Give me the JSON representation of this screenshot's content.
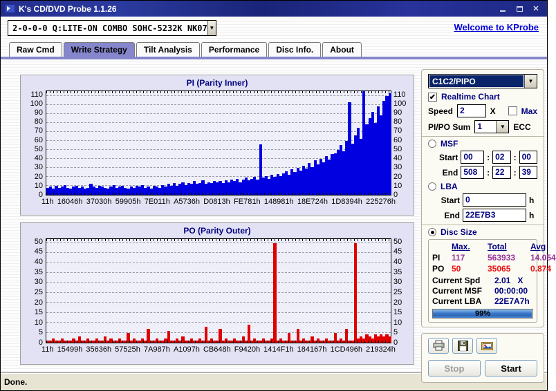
{
  "window": {
    "title": "K's CD/DVD Probe 1.1.26"
  },
  "toolbar": {
    "drive_selector": "2-0-0-0 Q:LITE-ON COMBO SOHC-5232K NK07",
    "welcome_link": "Welcome to KProbe"
  },
  "tabs": {
    "items": [
      "Raw Cmd",
      "Write Strategy",
      "Tilt Analysis",
      "Performance",
      "Disc Info.",
      "About"
    ],
    "active": "Write Strategy"
  },
  "chart_data": [
    {
      "type": "bar",
      "title": "PI (Parity Inner)",
      "color": "#0000e0",
      "ylim": [
        0,
        115
      ],
      "yticks": [
        0,
        10,
        20,
        30,
        40,
        50,
        60,
        70,
        80,
        90,
        100,
        110
      ],
      "grid": true,
      "xticklabels": [
        "11h",
        "16046h",
        "37030h",
        "59905h",
        "7E011h",
        "A5736h",
        "D0813h",
        "FE781h",
        "148981h",
        "18E724h",
        "1D8394h",
        "225276h"
      ],
      "values": [
        8,
        9,
        7,
        10,
        8,
        9,
        11,
        8,
        7,
        9,
        10,
        8,
        9,
        7,
        8,
        12,
        9,
        8,
        10,
        9,
        8,
        7,
        9,
        11,
        8,
        9,
        10,
        8,
        7,
        9,
        8,
        10,
        9,
        11,
        8,
        9,
        7,
        10,
        9,
        8,
        11,
        9,
        12,
        10,
        13,
        10,
        12,
        14,
        11,
        13,
        12,
        15,
        12,
        13,
        16,
        12,
        14,
        13,
        15,
        14,
        15,
        13,
        16,
        14,
        17,
        15,
        18,
        14,
        17,
        19,
        16,
        18,
        20,
        17,
        56,
        19,
        21,
        18,
        22,
        20,
        23,
        21,
        24,
        26,
        22,
        28,
        25,
        30,
        27,
        32,
        29,
        35,
        31,
        38,
        34,
        40,
        36,
        43,
        39,
        45,
        46,
        50,
        55,
        48,
        60,
        103,
        57,
        66,
        74,
        62,
        117,
        78,
        85,
        92,
        80,
        98,
        88,
        104,
        110,
        113
      ]
    },
    {
      "type": "bar",
      "title": "PO (Parity Outer)",
      "color": "#e00000",
      "ylim": [
        0,
        52
      ],
      "yticks": [
        0,
        5,
        10,
        15,
        20,
        25,
        30,
        35,
        40,
        45,
        50
      ],
      "grid": true,
      "xticklabels": [
        "11h",
        "15499h",
        "35636h",
        "57525h",
        "7A987h",
        "A1097h",
        "CB648h",
        "F9420h",
        "1414F1h",
        "184167h",
        "1CD496h",
        "219324h"
      ],
      "values": [
        1,
        1,
        2,
        1,
        1,
        2,
        1,
        1,
        1,
        2,
        1,
        3,
        1,
        1,
        2,
        1,
        1,
        2,
        1,
        1,
        3,
        1,
        2,
        1,
        1,
        2,
        1,
        1,
        5,
        1,
        2,
        1,
        1,
        2,
        1,
        7,
        1,
        1,
        2,
        1,
        1,
        2,
        6,
        1,
        1,
        2,
        1,
        3,
        1,
        1,
        2,
        1,
        1,
        2,
        1,
        8,
        1,
        2,
        1,
        1,
        7,
        1,
        2,
        1,
        1,
        2,
        1,
        1,
        3,
        1,
        9,
        1,
        2,
        1,
        1,
        2,
        1,
        1,
        2,
        50,
        1,
        2,
        1,
        1,
        5,
        1,
        1,
        7,
        1,
        2,
        1,
        1,
        3,
        1,
        2,
        1,
        1,
        2,
        1,
        1,
        5,
        1,
        2,
        1,
        7,
        1,
        1,
        50,
        2,
        3,
        2,
        4,
        3,
        2,
        4,
        3,
        4,
        3,
        4,
        3
      ]
    }
  ],
  "panel": {
    "mode_selector": "C1C2/PIPO",
    "realtime_label": "Realtime Chart",
    "realtime_checked": true,
    "speed_label": "Speed",
    "speed_value": "2",
    "speed_unit": "X",
    "max_label": "Max",
    "max_checked": false,
    "pipo_sum_label": "PI/PO Sum",
    "pipo_sum_value": "1",
    "ecc_label": "ECC",
    "msf": {
      "label": "MSF",
      "start_label": "Start",
      "end_label": "End",
      "sep": ":",
      "start": [
        "00",
        "02",
        "00"
      ],
      "end": [
        "508",
        "22",
        "39"
      ]
    },
    "lba": {
      "label": "LBA",
      "start_label": "Start",
      "end_label": "End",
      "start": "0",
      "end": "22E7B3",
      "unit": "h"
    },
    "disc_size_label": "Disc Size",
    "selected_range": "disc_size",
    "stats": {
      "headers": [
        "Max.",
        "Total",
        "Avg"
      ],
      "rows": [
        {
          "label": "PI",
          "max": "117",
          "total": "563933",
          "avg": "14.054",
          "color": "#993399"
        },
        {
          "label": "PO",
          "max": "50",
          "total": "35065",
          "avg": "0.874",
          "color": "#ee1111"
        }
      ],
      "current": [
        {
          "label": "Current Spd",
          "value": "2.01   X"
        },
        {
          "label": "Current MSF",
          "value": "00:00:00"
        },
        {
          "label": "Current LBA",
          "value": "22E7A7h"
        }
      ],
      "progress_label": "99%",
      "progress_pct": 99
    },
    "buttons": {
      "stop": "Stop",
      "start": "Start"
    }
  },
  "statusbar": {
    "text": "Done."
  }
}
